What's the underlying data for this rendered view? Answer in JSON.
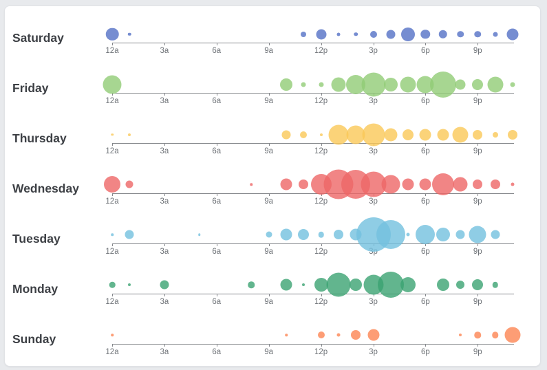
{
  "chart_data": {
    "type": "scatter",
    "title": "",
    "description": "Punch-card style single-axis bubble chart: activity by hour of day for each day of the week; bubble diameter (px) encodes magnitude.",
    "legend_position": "none",
    "grid": false,
    "x_axis": {
      "ticks": [
        "12a",
        "3a",
        "6a",
        "9a",
        "12p",
        "3p",
        "6p",
        "9p"
      ],
      "tick_hours": [
        0,
        3,
        6,
        9,
        12,
        15,
        18,
        21
      ],
      "range_hours": [
        0,
        23
      ]
    },
    "bubble_opacity": 0.8,
    "rows": [
      {
        "day": "Saturday",
        "color": "#5470c6",
        "points": [
          {
            "hour": 0,
            "d": 18.5
          },
          {
            "hour": 1,
            "d": 4.5
          },
          {
            "hour": 11,
            "d": 8
          },
          {
            "hour": 12,
            "d": 15
          },
          {
            "hour": 13,
            "d": 5
          },
          {
            "hour": 14,
            "d": 5.5
          },
          {
            "hour": 15,
            "d": 10
          },
          {
            "hour": 16,
            "d": 13
          },
          {
            "hour": 17,
            "d": 20
          },
          {
            "hour": 18,
            "d": 13.5
          },
          {
            "hour": 19,
            "d": 12.5
          },
          {
            "hour": 20,
            "d": 9.5
          },
          {
            "hour": 21,
            "d": 9.5
          },
          {
            "hour": 22,
            "d": 7
          },
          {
            "hour": 23,
            "d": 17
          }
        ]
      },
      {
        "day": "Friday",
        "color": "#91cc75",
        "points": [
          {
            "hour": 0,
            "d": 27
          },
          {
            "hour": 10,
            "d": 18
          },
          {
            "hour": 11,
            "d": 7
          },
          {
            "hour": 12,
            "d": 7
          },
          {
            "hour": 13,
            "d": 21
          },
          {
            "hour": 14,
            "d": 28
          },
          {
            "hour": 15,
            "d": 35
          },
          {
            "hour": 16,
            "d": 20
          },
          {
            "hour": 17,
            "d": 23
          },
          {
            "hour": 18,
            "d": 25
          },
          {
            "hour": 19,
            "d": 38
          },
          {
            "hour": 20,
            "d": 15
          },
          {
            "hour": 21,
            "d": 16
          },
          {
            "hour": 22,
            "d": 23
          },
          {
            "hour": 23,
            "d": 7
          }
        ]
      },
      {
        "day": "Thursday",
        "color": "#fac858",
        "points": [
          {
            "hour": 0,
            "d": 3.5
          },
          {
            "hour": 1,
            "d": 4
          },
          {
            "hour": 10,
            "d": 13
          },
          {
            "hour": 11,
            "d": 10
          },
          {
            "hour": 12,
            "d": 4
          },
          {
            "hour": 13,
            "d": 29
          },
          {
            "hour": 14,
            "d": 27
          },
          {
            "hour": 15,
            "d": 33
          },
          {
            "hour": 16,
            "d": 19
          },
          {
            "hour": 17,
            "d": 16
          },
          {
            "hour": 18,
            "d": 17
          },
          {
            "hour": 19,
            "d": 17
          },
          {
            "hour": 20,
            "d": 23
          },
          {
            "hour": 21,
            "d": 14
          },
          {
            "hour": 22,
            "d": 8
          },
          {
            "hour": 23,
            "d": 14
          }
        ]
      },
      {
        "day": "Wednesday",
        "color": "#ee6666",
        "points": [
          {
            "hour": 0,
            "d": 24
          },
          {
            "hour": 1,
            "d": 11
          },
          {
            "hour": 8,
            "d": 3.5
          },
          {
            "hour": 10,
            "d": 17
          },
          {
            "hour": 11,
            "d": 14
          },
          {
            "hour": 12,
            "d": 30
          },
          {
            "hour": 13,
            "d": 43
          },
          {
            "hour": 14,
            "d": 42
          },
          {
            "hour": 15,
            "d": 37
          },
          {
            "hour": 16,
            "d": 27
          },
          {
            "hour": 17,
            "d": 17
          },
          {
            "hour": 18,
            "d": 17
          },
          {
            "hour": 19,
            "d": 32
          },
          {
            "hour": 20,
            "d": 21
          },
          {
            "hour": 21,
            "d": 14
          },
          {
            "hour": 22,
            "d": 14
          },
          {
            "hour": 23,
            "d": 5
          }
        ]
      },
      {
        "day": "Tuesday",
        "color": "#73c0de",
        "points": [
          {
            "hour": 0,
            "d": 3.5
          },
          {
            "hour": 1,
            "d": 13
          },
          {
            "hour": 5,
            "d": 3.5
          },
          {
            "hour": 9,
            "d": 9
          },
          {
            "hour": 10,
            "d": 17
          },
          {
            "hour": 11,
            "d": 16
          },
          {
            "hour": 12,
            "d": 8.5
          },
          {
            "hour": 13,
            "d": 14
          },
          {
            "hour": 14,
            "d": 17
          },
          {
            "hour": 15,
            "d": 50
          },
          {
            "hour": 16,
            "d": 42
          },
          {
            "hour": 17,
            "d": 5
          },
          {
            "hour": 18,
            "d": 28
          },
          {
            "hour": 19,
            "d": 20
          },
          {
            "hour": 20,
            "d": 13
          },
          {
            "hour": 21,
            "d": 25
          },
          {
            "hour": 22,
            "d": 13
          }
        ]
      },
      {
        "day": "Monday",
        "color": "#3ba272",
        "points": [
          {
            "hour": 0,
            "d": 8.5
          },
          {
            "hour": 1,
            "d": 4
          },
          {
            "hour": 3,
            "d": 13
          },
          {
            "hour": 8,
            "d": 9.5
          },
          {
            "hour": 10,
            "d": 17
          },
          {
            "hour": 11,
            "d": 4
          },
          {
            "hour": 12,
            "d": 20
          },
          {
            "hour": 13,
            "d": 35
          },
          {
            "hour": 14,
            "d": 18
          },
          {
            "hour": 15,
            "d": 29
          },
          {
            "hour": 16,
            "d": 38
          },
          {
            "hour": 17,
            "d": 22
          },
          {
            "hour": 19,
            "d": 18
          },
          {
            "hour": 20,
            "d": 12
          },
          {
            "hour": 21,
            "d": 16
          },
          {
            "hour": 22,
            "d": 8.5
          }
        ]
      },
      {
        "day": "Sunday",
        "color": "#fc8452",
        "points": [
          {
            "hour": 0,
            "d": 3.5
          },
          {
            "hour": 10,
            "d": 3.5
          },
          {
            "hour": 12,
            "d": 10
          },
          {
            "hour": 13,
            "d": 5
          },
          {
            "hour": 14,
            "d": 14
          },
          {
            "hour": 15,
            "d": 17
          },
          {
            "hour": 20,
            "d": 4
          },
          {
            "hour": 21,
            "d": 9.5
          },
          {
            "hour": 22,
            "d": 9.5
          },
          {
            "hour": 23,
            "d": 23
          }
        ]
      }
    ]
  },
  "colors": {
    "page_background": "#e8eaed",
    "card_background": "#ffffff",
    "axis_line": "#85888c",
    "tick_label": "#6e7277",
    "day_label": "#3d4045"
  }
}
